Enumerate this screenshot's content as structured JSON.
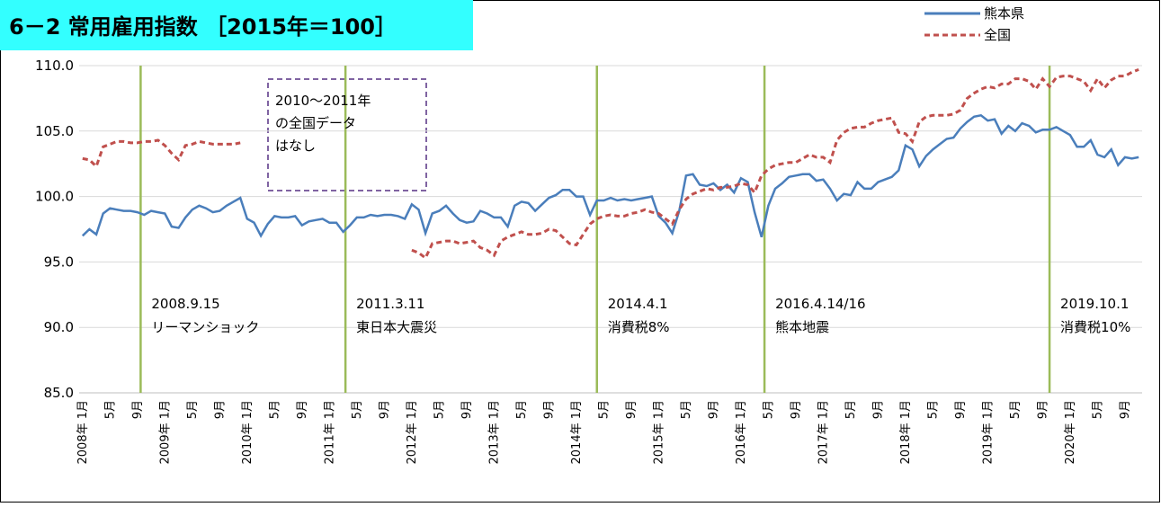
{
  "chart_data": {
    "type": "line",
    "title": "6－2 常用雇用指数 ［2015年＝100］",
    "categories": [
      "2008年 1月",
      null,
      null,
      null,
      "5月",
      null,
      null,
      null,
      "9月",
      null,
      null,
      null,
      "2009年 1月",
      null,
      null,
      null,
      "5月",
      null,
      null,
      null,
      "9月",
      null,
      null,
      null,
      "2010年 1月",
      null,
      null,
      null,
      "5月",
      null,
      null,
      null,
      "9月",
      null,
      null,
      null,
      "2011年 1月",
      null,
      null,
      null,
      "5月",
      null,
      null,
      null,
      "9月",
      null,
      null,
      null,
      "2012年 1月",
      null,
      null,
      null,
      "5月",
      null,
      null,
      null,
      "9月",
      null,
      null,
      null,
      "2013年 1月",
      null,
      null,
      null,
      "5月",
      null,
      null,
      null,
      "9月",
      null,
      null,
      null,
      "2014年 1月",
      null,
      null,
      null,
      "5月",
      null,
      null,
      null,
      "9月",
      null,
      null,
      null,
      "2015年 1月",
      null,
      null,
      null,
      "5月",
      null,
      null,
      null,
      "9月",
      null,
      null,
      null,
      "2016年 1月",
      null,
      null,
      null,
      "5月",
      null,
      null,
      null,
      "9月",
      null,
      null,
      null,
      "2017年 1月",
      null,
      null,
      null,
      "5月",
      null,
      null,
      null,
      "9月",
      null,
      null,
      null,
      "2018年 1月",
      null,
      null,
      null,
      "5月",
      null,
      null,
      null,
      "9月",
      null,
      null,
      null,
      "2019年 1月",
      null,
      null,
      null,
      "5月",
      null,
      null,
      null,
      "9月",
      null,
      null,
      null,
      "2020年 1月",
      null,
      null,
      null,
      "5月",
      null,
      null,
      null,
      "9月",
      null,
      null
    ],
    "series": [
      {
        "name": "熊本県",
        "color": "#4a7ebb",
        "dash": false,
        "values": [
          97.0,
          97.5,
          97.1,
          98.7,
          99.1,
          99.0,
          98.9,
          98.9,
          98.8,
          98.6,
          98.9,
          98.8,
          98.7,
          97.7,
          97.6,
          98.4,
          99.0,
          99.3,
          99.1,
          98.8,
          98.9,
          99.3,
          99.6,
          99.9,
          98.3,
          98.0,
          97.0,
          97.9,
          98.5,
          98.4,
          98.4,
          98.5,
          97.8,
          98.1,
          98.2,
          98.3,
          98.0,
          98.0,
          97.3,
          97.8,
          98.4,
          98.4,
          98.6,
          98.5,
          98.6,
          98.6,
          98.5,
          98.3,
          99.4,
          99.0,
          97.2,
          98.7,
          98.9,
          99.3,
          98.7,
          98.2,
          98.0,
          98.1,
          98.9,
          98.7,
          98.4,
          98.4,
          97.7,
          99.3,
          99.6,
          99.5,
          98.9,
          99.4,
          99.9,
          100.1,
          100.5,
          100.5,
          100.0,
          100.0,
          98.6,
          99.7,
          99.7,
          99.9,
          99.7,
          99.8,
          99.7,
          99.8,
          99.9,
          100.0,
          98.5,
          98.0,
          97.2,
          98.9,
          101.6,
          101.7,
          100.9,
          100.8,
          101.0,
          100.5,
          100.9,
          100.3,
          101.4,
          101.1,
          98.8,
          96.9,
          99.3,
          100.6,
          101.0,
          101.5,
          101.6,
          101.7,
          101.7,
          101.2,
          101.3,
          100.6,
          99.7,
          100.2,
          100.1,
          101.1,
          100.6,
          100.6,
          101.1,
          101.3,
          101.5,
          102.0,
          103.9,
          103.6,
          102.3,
          103.1,
          103.6,
          104.0,
          104.4,
          104.5,
          105.2,
          105.7,
          106.1,
          106.2,
          105.8,
          105.9,
          104.8,
          105.4,
          105.0,
          105.6,
          105.4,
          104.9,
          105.1,
          105.1,
          105.3,
          105.0,
          104.7,
          103.8,
          103.8,
          104.3,
          103.2,
          103.0,
          103.6,
          102.4,
          103.0,
          102.9,
          103.0
        ]
      },
      {
        "name": "全国",
        "color": "#c0504d",
        "dash": true,
        "values": [
          102.9,
          102.8,
          102.3,
          103.8,
          104.0,
          104.2,
          104.2,
          104.1,
          104.1,
          104.2,
          104.2,
          104.3,
          103.9,
          103.3,
          102.8,
          103.9,
          104.0,
          104.2,
          104.1,
          104.0,
          104.0,
          104.0,
          104.0,
          104.1,
          null,
          null,
          null,
          null,
          null,
          null,
          null,
          null,
          null,
          null,
          null,
          null,
          null,
          null,
          null,
          null,
          null,
          null,
          null,
          null,
          null,
          null,
          null,
          null,
          95.9,
          95.7,
          95.3,
          96.4,
          96.5,
          96.6,
          96.6,
          96.4,
          96.5,
          96.6,
          96.1,
          95.9,
          95.5,
          96.6,
          96.9,
          97.1,
          97.3,
          97.1,
          97.1,
          97.2,
          97.5,
          97.4,
          96.9,
          96.4,
          96.3,
          97.1,
          97.9,
          98.3,
          98.5,
          98.6,
          98.5,
          98.5,
          98.7,
          98.8,
          99.0,
          98.8,
          98.7,
          98.3,
          97.9,
          99.0,
          99.8,
          100.2,
          100.4,
          100.6,
          100.5,
          100.7,
          100.7,
          100.8,
          101.0,
          100.9,
          100.3,
          101.6,
          102.1,
          102.4,
          102.5,
          102.6,
          102.6,
          102.9,
          103.2,
          103.0,
          103.0,
          102.6,
          104.3,
          104.9,
          105.2,
          105.3,
          105.3,
          105.6,
          105.8,
          105.9,
          106.0,
          104.9,
          104.8,
          104.2,
          105.7,
          106.1,
          106.2,
          106.2,
          106.2,
          106.3,
          106.6,
          107.5,
          107.9,
          108.2,
          108.4,
          108.3,
          108.6,
          108.6,
          109.0,
          109.0,
          108.8,
          108.2,
          109.0,
          108.4,
          109.1,
          109.2,
          109.2,
          109.0,
          108.8,
          108.1,
          109.0,
          108.3,
          108.9,
          109.2,
          109.2,
          109.5,
          109.7
        ]
      }
    ],
    "ylim": [
      85,
      110
    ],
    "yticks": [
      {
        "value": 85,
        "label": "85.0"
      },
      {
        "value": 90,
        "label": "90.0"
      },
      {
        "value": 95,
        "label": "95.0"
      },
      {
        "value": 100,
        "label": "100.0"
      },
      {
        "value": 105,
        "label": "105.0"
      },
      {
        "value": 110,
        "label": "110.0"
      }
    ],
    "grid": true,
    "legend": "top-right",
    "events": [
      {
        "date": "2008.9.15",
        "label": "リーマンショック"
      },
      {
        "date": "2011.3.11",
        "label": "東日本大震災"
      },
      {
        "date": "2014.4.1",
        "label": "消費税8%"
      },
      {
        "date": "2016.4.14/16",
        "label": "熊本地震"
      },
      {
        "date": "2019.10.1",
        "label": "消費税10%"
      }
    ],
    "event_color": "#9bbb59",
    "note": [
      "2010～2011年",
      "の全国データ",
      "はなし"
    ]
  }
}
